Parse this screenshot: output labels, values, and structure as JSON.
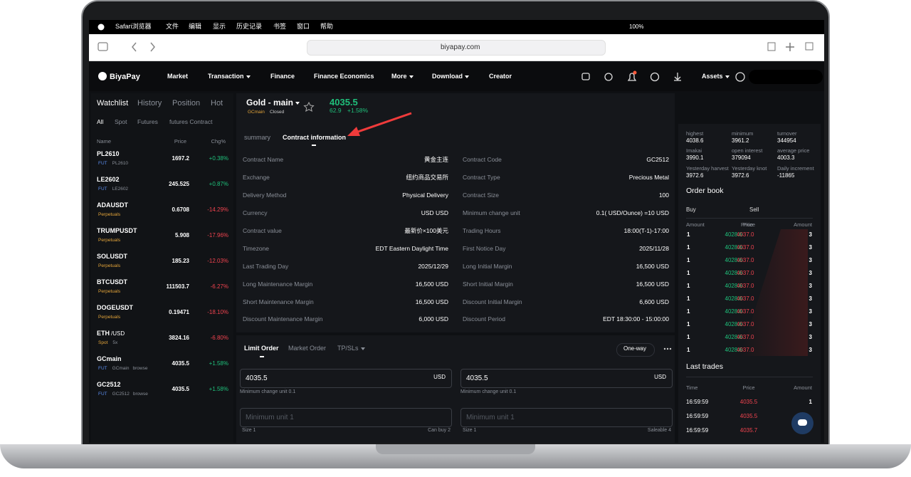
{
  "menubar": {
    "app": "Safari浏览器",
    "items": [
      "文件",
      "编辑",
      "显示",
      "历史记录",
      "书签",
      "窗口",
      "帮助"
    ],
    "battery": "100%"
  },
  "browser": {
    "url": "biyapay.com"
  },
  "nav": {
    "logo": "BiyaPay",
    "items": [
      "Market",
      "Transaction",
      "Finance",
      "Finance Economics",
      "More",
      "Download",
      "Creator"
    ],
    "assets": "Assets"
  },
  "watchlist": {
    "tabs": [
      "Watchlist",
      "History",
      "Position",
      "Hot"
    ],
    "filters": [
      "All",
      "Spot",
      "Futures",
      "futures Contract"
    ],
    "columns": [
      "Name",
      "Price",
      "Chg%"
    ],
    "rows": [
      {
        "symbol": "PL2610",
        "tag": "FUT",
        "sub": "PL2610",
        "price": "1697.2",
        "change": "+0.38%"
      },
      {
        "symbol": "LE2602",
        "tag": "FUT",
        "sub": "LE2602",
        "price": "245.525",
        "change": "+0.87%"
      },
      {
        "symbol": "ADAUSDT",
        "tag": "Perpetuals",
        "price": "0.6708",
        "change": "-14.29%"
      },
      {
        "symbol": "TRUMPUSDT",
        "tag": "Perpetuals",
        "price": "5.908",
        "change": "-17.96%"
      },
      {
        "symbol": "SOLUSDT",
        "tag": "Perpetuals",
        "price": "185.23",
        "change": "-12.03%"
      },
      {
        "symbol": "BTCUSDT",
        "tag": "Perpetuals",
        "price": "111503.7",
        "change": "-6.27%"
      },
      {
        "symbol": "DOGEUSDT",
        "tag": "Perpetuals",
        "price": "0.19471",
        "change": "-18.10%"
      },
      {
        "symbol": "ETH",
        "suffix": "/USD",
        "tag": "Spot",
        "sub": "5x",
        "price": "3824.16",
        "change": "-6.80%"
      },
      {
        "symbol": "GCmain",
        "tag": "FUT",
        "sub": "GCmain",
        "extra": "browse",
        "price": "4035.5",
        "change": "+1.58%"
      },
      {
        "symbol": "GC2512",
        "tag": "FUT",
        "sub": "GC2512",
        "extra": "browse",
        "price": "4035.5",
        "change": "+1.58%"
      }
    ]
  },
  "instrument": {
    "name": "Gold - main",
    "code": "GCmain",
    "status": "Closed",
    "price": "4035.5",
    "change": "62.9",
    "change_pct": "+1.58%"
  },
  "tabs": [
    "summary",
    "Contract information"
  ],
  "contract_info": {
    "rows": [
      [
        {
          "label": "Contract Name",
          "value": "黄金主连"
        },
        {
          "label": "Contract Code",
          "value": "GC2512"
        }
      ],
      [
        {
          "label": "Exchange",
          "value": "纽约商品交易所"
        },
        {
          "label": "Contract Type",
          "value": "Precious Metal"
        }
      ],
      [
        {
          "label": "Delivery Method",
          "value": "Physical Delivery"
        },
        {
          "label": "Contract Size",
          "value": "100"
        }
      ],
      [
        {
          "label": "Currency",
          "value": "USD USD"
        },
        {
          "label": "Minimum change unit",
          "value": "0.1( USD/Ounce) =10 USD"
        }
      ],
      [
        {
          "label": "Contract value",
          "value": "最新价×100美元"
        },
        {
          "label": "Trading Hours",
          "value": "18:00(T-1)-17:00"
        }
      ],
      [
        {
          "label": "Timezone",
          "value": "EDT Eastern Daylight Time"
        },
        {
          "label": "First Notice Day",
          "value": "2025/11/28"
        }
      ],
      [
        {
          "label": "Last Trading Day",
          "value": "2025/12/29"
        },
        {
          "label": "Long Initial Margin",
          "value": "16,500 USD"
        }
      ],
      [
        {
          "label": "Long Maintenance Margin",
          "value": "16,500 USD"
        },
        {
          "label": "Short Initial Margin",
          "value": "16,500 USD"
        }
      ],
      [
        {
          "label": "Short Maintenance Margin",
          "value": "16,500 USD"
        },
        {
          "label": "Discount Initial Margin",
          "value": "6,600 USD"
        }
      ],
      [
        {
          "label": "Discount Maintenance Margin",
          "value": "6,000 USD"
        },
        {
          "label": "Discount Period",
          "value": "EDT 18:30:00 - 15:00:00"
        }
      ]
    ]
  },
  "order_form": {
    "tabs": [
      "Limit Order",
      "Market Order",
      "TP/SLs"
    ],
    "mode": "One-way",
    "sides": [
      {
        "price": "4035.5",
        "currency": "USD",
        "hint": "Minimum change unit 0.1",
        "placeholder": "Minimum unit 1",
        "size": "Size 1",
        "available": "Can buy 2"
      },
      {
        "price": "4035.5",
        "currency": "USD",
        "hint": "Minimum change unit 0.1",
        "placeholder": "Minimum unit 1",
        "size": "Size 1",
        "available": "Saleable 4"
      }
    ]
  },
  "stats": [
    {
      "label": "highest",
      "value": "4038.6"
    },
    {
      "label": "minimum",
      "value": "3961.2"
    },
    {
      "label": "turnover",
      "value": "344954"
    },
    {
      "label": "Imakai",
      "value": "3990.1"
    },
    {
      "label": "open interest",
      "value": "379094"
    },
    {
      "label": "average price",
      "value": "4003.3"
    },
    {
      "label": "Yesterday harvest",
      "value": "3972.6"
    },
    {
      "label": "Yesterday knot",
      "value": "3972.6"
    },
    {
      "label": "Daily increment",
      "value": "-11865"
    }
  ],
  "order_book": {
    "title": "Order book",
    "sides": [
      "Buy",
      "Sell"
    ],
    "columns": [
      "Amount",
      "Price",
      "Price",
      "Amount"
    ],
    "rows": [
      {
        "buy_amount": "1",
        "buy_price": "4028.6",
        "sell_price": "4037.0",
        "sell_amount": "3"
      },
      {
        "buy_amount": "1",
        "buy_price": "4028.6",
        "sell_price": "4037.0",
        "sell_amount": "3"
      },
      {
        "buy_amount": "1",
        "buy_price": "4028.6",
        "sell_price": "4037.0",
        "sell_amount": "3"
      },
      {
        "buy_amount": "1",
        "buy_price": "4028.6",
        "sell_price": "4037.0",
        "sell_amount": "3"
      },
      {
        "buy_amount": "1",
        "buy_price": "4028.6",
        "sell_price": "4037.0",
        "sell_amount": "3"
      },
      {
        "buy_amount": "1",
        "buy_price": "4028.6",
        "sell_price": "4037.0",
        "sell_amount": "3"
      },
      {
        "buy_amount": "1",
        "buy_price": "4028.6",
        "sell_price": "4037.0",
        "sell_amount": "3"
      },
      {
        "buy_amount": "1",
        "buy_price": "4028.6",
        "sell_price": "4037.0",
        "sell_amount": "3"
      },
      {
        "buy_amount": "1",
        "buy_price": "4028.6",
        "sell_price": "4037.0",
        "sell_amount": "3"
      },
      {
        "buy_amount": "1",
        "buy_price": "4028.6",
        "sell_price": "4037.0",
        "sell_amount": "3"
      }
    ]
  },
  "last_trades": {
    "title": "Last trades",
    "columns": [
      "Time",
      "Price",
      "Amount"
    ],
    "rows": [
      {
        "time": "16:59:59",
        "price": "4035.5",
        "amount": "1"
      },
      {
        "time": "16:59:59",
        "price": "4035.5"
      },
      {
        "time": "16:59:59",
        "price": "4035.7"
      }
    ]
  }
}
